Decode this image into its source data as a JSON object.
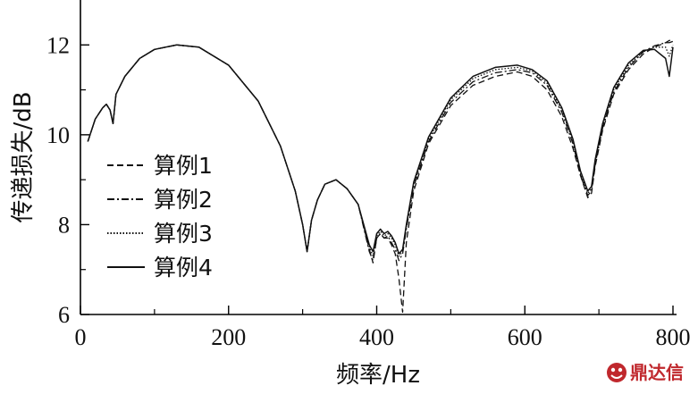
{
  "chart_data": {
    "type": "line",
    "title": "",
    "xlabel": "频率/Hz",
    "ylabel": "传递损失/dB",
    "xlim": [
      0,
      800
    ],
    "ylim": [
      6,
      13
    ],
    "xticks": [
      0,
      200,
      400,
      600,
      800
    ],
    "yticks": [
      6,
      8,
      10,
      12
    ],
    "grid": false,
    "legend_position": "center-left",
    "series": [
      {
        "name": "算例1",
        "style": "dashed",
        "x": [
          10,
          20,
          30,
          35,
          40,
          44,
          48,
          60,
          80,
          100,
          130,
          160,
          200,
          240,
          270,
          290,
          300,
          306,
          312,
          320,
          330,
          345,
          360,
          375,
          390,
          395,
          400,
          405,
          410,
          415,
          420,
          425,
          430,
          435,
          440,
          450,
          470,
          500,
          530,
          560,
          590,
          610,
          630,
          650,
          665,
          675,
          685,
          690,
          695,
          705,
          720,
          740,
          760,
          775,
          790,
          795,
          800
        ],
        "y": [
          9.85,
          10.35,
          10.6,
          10.68,
          10.55,
          10.25,
          10.9,
          11.3,
          11.7,
          11.9,
          12.0,
          11.95,
          11.55,
          10.75,
          9.75,
          8.75,
          8.0,
          7.4,
          8.1,
          8.55,
          8.9,
          9.0,
          8.8,
          8.45,
          7.45,
          7.15,
          7.7,
          7.8,
          7.7,
          7.7,
          7.55,
          7.35,
          6.8,
          6.05,
          7.6,
          8.75,
          9.8,
          10.65,
          11.1,
          11.3,
          11.4,
          11.3,
          11.0,
          10.4,
          9.7,
          9.1,
          8.6,
          8.7,
          9.3,
          10.1,
          10.9,
          11.45,
          11.8,
          11.95,
          12.05,
          12.1,
          12.1
        ]
      },
      {
        "name": "算例2",
        "style": "dash-dot",
        "x": [
          10,
          20,
          30,
          35,
          40,
          44,
          48,
          60,
          80,
          100,
          130,
          160,
          200,
          240,
          270,
          290,
          300,
          306,
          312,
          320,
          330,
          345,
          360,
          375,
          390,
          395,
          400,
          405,
          410,
          415,
          420,
          425,
          430,
          435,
          440,
          450,
          470,
          500,
          530,
          560,
          590,
          610,
          630,
          650,
          665,
          675,
          685,
          690,
          695,
          705,
          720,
          740,
          760,
          775,
          790,
          795,
          800
        ],
        "y": [
          9.85,
          10.35,
          10.6,
          10.68,
          10.55,
          10.25,
          10.9,
          11.3,
          11.7,
          11.9,
          12.0,
          11.95,
          11.55,
          10.75,
          9.75,
          8.75,
          8.0,
          7.4,
          8.1,
          8.55,
          8.9,
          9.0,
          8.8,
          8.45,
          7.4,
          7.2,
          7.7,
          7.8,
          7.7,
          7.75,
          7.6,
          7.45,
          7.2,
          7.35,
          7.9,
          8.85,
          9.85,
          10.72,
          11.18,
          11.38,
          11.45,
          11.38,
          11.1,
          10.5,
          9.8,
          9.1,
          8.65,
          8.75,
          9.35,
          10.15,
          10.95,
          11.5,
          11.85,
          11.98,
          12.05,
          12.05,
          12.08
        ]
      },
      {
        "name": "算例3",
        "style": "dotted",
        "x": [
          10,
          20,
          30,
          35,
          40,
          44,
          48,
          60,
          80,
          100,
          130,
          160,
          200,
          240,
          270,
          290,
          300,
          306,
          312,
          320,
          330,
          345,
          360,
          375,
          390,
          395,
          400,
          405,
          410,
          415,
          420,
          425,
          430,
          435,
          440,
          450,
          470,
          500,
          530,
          560,
          590,
          610,
          630,
          650,
          665,
          675,
          685,
          690,
          695,
          705,
          720,
          740,
          760,
          775,
          790,
          795,
          800
        ],
        "y": [
          9.85,
          10.35,
          10.6,
          10.68,
          10.55,
          10.25,
          10.9,
          11.3,
          11.7,
          11.9,
          12.0,
          11.95,
          11.55,
          10.75,
          9.75,
          8.75,
          8.0,
          7.4,
          8.1,
          8.55,
          8.9,
          9.0,
          8.8,
          8.45,
          7.5,
          7.3,
          7.75,
          7.85,
          7.75,
          7.8,
          7.7,
          7.55,
          7.3,
          7.4,
          7.95,
          8.9,
          9.9,
          10.78,
          11.25,
          11.45,
          11.5,
          11.42,
          11.15,
          10.55,
          9.85,
          9.15,
          8.7,
          8.8,
          9.4,
          10.2,
          11.0,
          11.55,
          11.85,
          11.95,
          11.95,
          11.75,
          12.0
        ]
      },
      {
        "name": "算例4",
        "style": "solid",
        "x": [
          10,
          20,
          30,
          35,
          40,
          44,
          48,
          60,
          80,
          100,
          130,
          160,
          200,
          240,
          270,
          290,
          300,
          306,
          312,
          320,
          330,
          345,
          360,
          375,
          390,
          395,
          400,
          405,
          410,
          415,
          420,
          425,
          430,
          435,
          440,
          450,
          470,
          500,
          530,
          560,
          590,
          610,
          630,
          650,
          665,
          675,
          685,
          690,
          695,
          705,
          720,
          740,
          760,
          775,
          790,
          795,
          800
        ],
        "y": [
          9.85,
          10.35,
          10.6,
          10.68,
          10.55,
          10.25,
          10.9,
          11.3,
          11.7,
          11.9,
          12.0,
          11.95,
          11.55,
          10.75,
          9.75,
          8.75,
          8.0,
          7.4,
          8.1,
          8.55,
          8.9,
          9.0,
          8.8,
          8.45,
          7.55,
          7.4,
          7.8,
          7.9,
          7.8,
          7.85,
          7.75,
          7.6,
          7.35,
          7.45,
          8.0,
          8.95,
          9.95,
          10.82,
          11.3,
          11.5,
          11.55,
          11.45,
          11.2,
          10.6,
          9.9,
          9.2,
          8.75,
          8.85,
          9.45,
          10.25,
          11.05,
          11.6,
          11.88,
          11.9,
          11.7,
          11.3,
          11.95
        ]
      }
    ]
  },
  "watermark": {
    "text": "鼎达信",
    "logo_icon": "dingdaxin-logo-icon",
    "color": "#c0282d"
  }
}
